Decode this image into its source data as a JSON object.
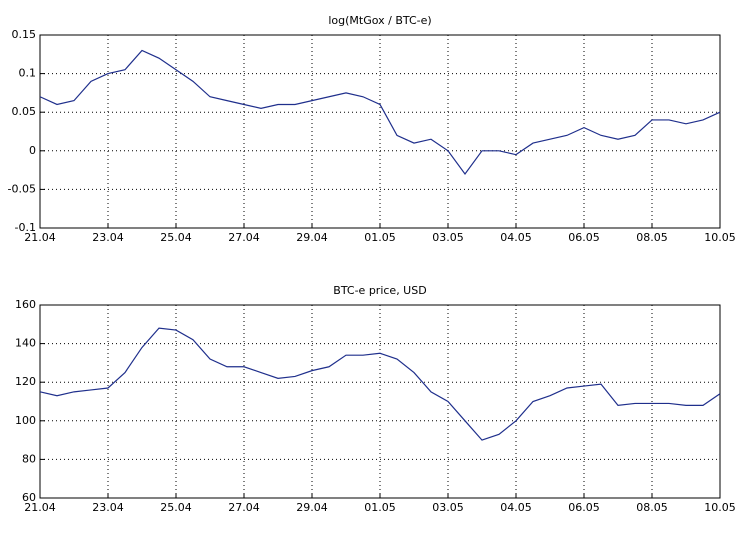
{
  "chart_data": [
    {
      "type": "line",
      "title": "log(MtGox / BTC-e)",
      "x": [
        0,
        0.5,
        1,
        1.5,
        2,
        2.5,
        3,
        3.5,
        4,
        4.5,
        5,
        5.5,
        6,
        6.5,
        7,
        7.5,
        8,
        8.5,
        9,
        9.5,
        10,
        10.5,
        11,
        11.5,
        12,
        12.5,
        13,
        13.5,
        14,
        14.5,
        15,
        15.5,
        16,
        16.5,
        17,
        17.5,
        18,
        18.5,
        19,
        19.5,
        20
      ],
      "xlim": [
        0,
        20
      ],
      "xticks": [
        {
          "value": 0,
          "label": "21.04"
        },
        {
          "value": 2,
          "label": "23.04"
        },
        {
          "value": 4,
          "label": "25.04"
        },
        {
          "value": 6,
          "label": "27.04"
        },
        {
          "value": 8,
          "label": "29.04"
        },
        {
          "value": 10,
          "label": "01.05"
        },
        {
          "value": 12,
          "label": "03.05"
        },
        {
          "value": 14,
          "label": "04.05"
        },
        {
          "value": 16,
          "label": "06.05"
        },
        {
          "value": 18,
          "label": "08.05"
        },
        {
          "value": 20,
          "label": "10.05"
        }
      ],
      "ylim": [
        -0.1,
        0.15
      ],
      "yticks": [
        -0.1,
        -0.05,
        0,
        0.05,
        0.1,
        0.15
      ],
      "grid": true,
      "series": [
        {
          "color": "#1f2f8c",
          "values": [
            0.07,
            0.06,
            0.065,
            0.09,
            0.1,
            0.105,
            0.13,
            0.12,
            0.105,
            0.09,
            0.07,
            0.065,
            0.06,
            0.055,
            0.06,
            0.06,
            0.065,
            0.07,
            0.075,
            0.07,
            0.06,
            0.02,
            0.01,
            0.015,
            0.0,
            -0.03,
            0.0,
            0.0,
            -0.005,
            0.01,
            0.015,
            0.02,
            0.03,
            0.02,
            0.015,
            0.02,
            0.04,
            0.04,
            0.035,
            0.04,
            0.05
          ]
        }
      ]
    },
    {
      "type": "line",
      "title": "BTC-e price, USD",
      "x": [
        0,
        0.5,
        1,
        1.5,
        2,
        2.5,
        3,
        3.5,
        4,
        4.5,
        5,
        5.5,
        6,
        6.5,
        7,
        7.5,
        8,
        8.5,
        9,
        9.5,
        10,
        10.5,
        11,
        11.5,
        12,
        12.5,
        13,
        13.5,
        14,
        14.5,
        15,
        15.5,
        16,
        16.5,
        17,
        17.5,
        18,
        18.5,
        19,
        19.5,
        20
      ],
      "xlim": [
        0,
        20
      ],
      "xticks": [
        {
          "value": 0,
          "label": "21.04"
        },
        {
          "value": 2,
          "label": "23.04"
        },
        {
          "value": 4,
          "label": "25.04"
        },
        {
          "value": 6,
          "label": "27.04"
        },
        {
          "value": 8,
          "label": "29.04"
        },
        {
          "value": 10,
          "label": "01.05"
        },
        {
          "value": 12,
          "label": "03.05"
        },
        {
          "value": 14,
          "label": "04.05"
        },
        {
          "value": 16,
          "label": "06.05"
        },
        {
          "value": 18,
          "label": "08.05"
        },
        {
          "value": 20,
          "label": "10.05"
        }
      ],
      "ylim": [
        60,
        160
      ],
      "yticks": [
        60,
        80,
        100,
        120,
        140,
        160
      ],
      "grid": true,
      "series": [
        {
          "color": "#1f2f8c",
          "values": [
            115,
            113,
            115,
            116,
            117,
            125,
            138,
            148,
            147,
            142,
            132,
            128,
            128,
            125,
            122,
            123,
            126,
            128,
            134,
            134,
            135,
            132,
            125,
            115,
            110,
            100,
            90,
            93,
            100,
            110,
            113,
            117,
            118,
            119,
            108,
            109,
            109,
            109,
            108,
            108,
            114
          ]
        }
      ]
    }
  ]
}
